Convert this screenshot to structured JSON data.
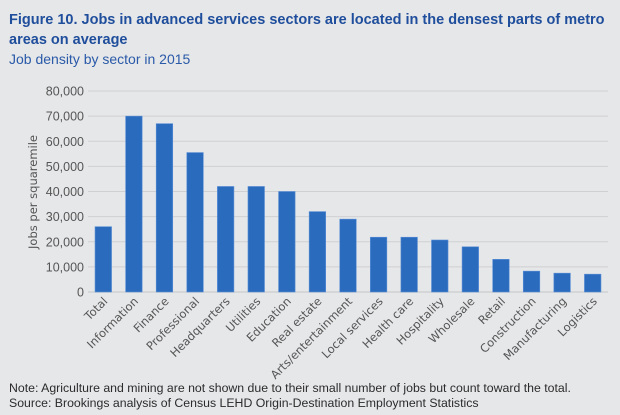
{
  "header": {
    "title": "Figure 10. Jobs in advanced services sectors are located in the densest parts of metro areas on average",
    "subtitle": "Job density by sector in 2015"
  },
  "footer": {
    "note": "Note: Agriculture and mining are not shown due to their small number of jobs but count toward the total.",
    "source": "Source: Brookings analysis of Census LEHD Origin-Destination Employment Statistics"
  },
  "colors": {
    "bar": "#2b6bbd",
    "grid": "#cfd0d2",
    "title": "#1f4e9c"
  },
  "chart_data": {
    "type": "bar",
    "title": "Job density by sector in 2015",
    "xlabel": "",
    "ylabel": "Jobs per squaremile",
    "ylim": [
      0,
      80000
    ],
    "yticks": [
      0,
      10000,
      20000,
      30000,
      40000,
      50000,
      60000,
      70000,
      80000
    ],
    "ytick_labels": [
      "0",
      "10,000",
      "20,000",
      "30,000",
      "40,000",
      "50,000",
      "60,000",
      "70,000",
      "80,000"
    ],
    "grid": true,
    "legend": "none",
    "categories": [
      "Total",
      "Information",
      "Finance",
      "Professional",
      "Headquarters",
      "Utilities",
      "Education",
      "Real estate",
      "Arts/entertainment",
      "Local services",
      "Health care",
      "Hospitality",
      "Wholesale",
      "Retail",
      "Construction",
      "Manufacturing",
      "Logistics"
    ],
    "values": [
      26000,
      70000,
      67000,
      55500,
      42000,
      42000,
      40000,
      32000,
      29000,
      21800,
      21800,
      20700,
      18000,
      13000,
      8300,
      7500,
      7100
    ]
  }
}
